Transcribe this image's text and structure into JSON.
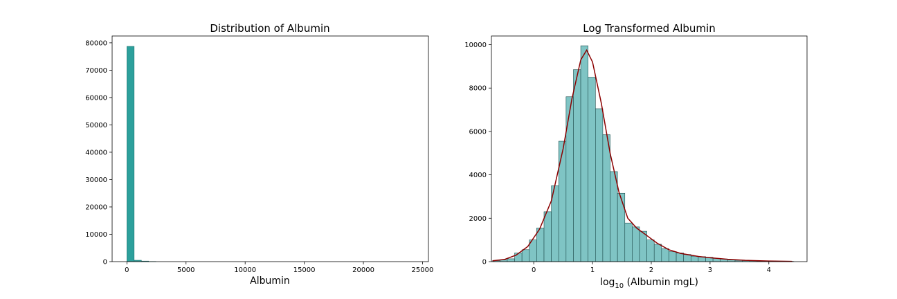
{
  "chart_data": [
    {
      "type": "bar",
      "title": "Distribution of Albumin",
      "xlabel": "Albumin",
      "ylabel": "",
      "xlim": [
        -1250,
        25500
      ],
      "ylim": [
        0,
        82500
      ],
      "xticks": [
        0,
        5000,
        10000,
        15000,
        20000,
        25000
      ],
      "yticks": [
        0,
        10000,
        20000,
        30000,
        40000,
        50000,
        60000,
        70000,
        80000
      ],
      "bin_width": 612.5,
      "bins": [
        {
          "x0": 0,
          "x1": 612.5,
          "count": 78700
        },
        {
          "x0": 612.5,
          "x1": 1225,
          "count": 500
        },
        {
          "x0": 1225,
          "x1": 1837.5,
          "count": 200
        },
        {
          "x0": 1837.5,
          "x1": 2450,
          "count": 60
        }
      ],
      "color": "#2ca09c",
      "edgecolor": "#1f6f6c",
      "grid": false
    },
    {
      "type": "bar",
      "title": "Log Transformed Albumin",
      "xlabel": "log10 (Albumin mgL)",
      "ylabel": "",
      "xlim": [
        -0.72,
        4.65
      ],
      "ylim": [
        0,
        10400
      ],
      "xticks": [
        0,
        1,
        2,
        3,
        4
      ],
      "yticks": [
        0,
        2000,
        4000,
        6000,
        8000,
        10000
      ],
      "bins": [
        {
          "x0": -0.7,
          "x1": -0.575,
          "count": 50
        },
        {
          "x0": -0.575,
          "x1": -0.45,
          "count": 80
        },
        {
          "x0": -0.45,
          "x1": -0.325,
          "count": 130
        },
        {
          "x0": -0.325,
          "x1": -0.2,
          "count": 400
        },
        {
          "x0": -0.2,
          "x1": -0.075,
          "count": 550
        },
        {
          "x0": -0.075,
          "x1": 0.05,
          "count": 1000
        },
        {
          "x0": 0.05,
          "x1": 0.175,
          "count": 1550
        },
        {
          "x0": 0.175,
          "x1": 0.3,
          "count": 2300
        },
        {
          "x0": 0.3,
          "x1": 0.425,
          "count": 3500
        },
        {
          "x0": 0.425,
          "x1": 0.55,
          "count": 5550
        },
        {
          "x0": 0.55,
          "x1": 0.675,
          "count": 7600
        },
        {
          "x0": 0.675,
          "x1": 0.8,
          "count": 8850
        },
        {
          "x0": 0.8,
          "x1": 0.925,
          "count": 9950
        },
        {
          "x0": 0.925,
          "x1": 1.05,
          "count": 8500
        },
        {
          "x0": 1.05,
          "x1": 1.175,
          "count": 7050
        },
        {
          "x0": 1.175,
          "x1": 1.3,
          "count": 5850
        },
        {
          "x0": 1.3,
          "x1": 1.425,
          "count": 4150
        },
        {
          "x0": 1.425,
          "x1": 1.55,
          "count": 3150
        },
        {
          "x0": 1.55,
          "x1": 1.675,
          "count": 1780
        },
        {
          "x0": 1.675,
          "x1": 1.8,
          "count": 1600
        },
        {
          "x0": 1.8,
          "x1": 1.925,
          "count": 1400
        },
        {
          "x0": 1.925,
          "x1": 2.05,
          "count": 1000
        },
        {
          "x0": 2.05,
          "x1": 2.175,
          "count": 800
        },
        {
          "x0": 2.175,
          "x1": 2.3,
          "count": 600
        },
        {
          "x0": 2.3,
          "x1": 2.425,
          "count": 460
        },
        {
          "x0": 2.425,
          "x1": 2.55,
          "count": 400
        },
        {
          "x0": 2.55,
          "x1": 2.675,
          "count": 330
        },
        {
          "x0": 2.675,
          "x1": 2.8,
          "count": 250
        },
        {
          "x0": 2.8,
          "x1": 2.925,
          "count": 230
        },
        {
          "x0": 2.925,
          "x1": 3.05,
          "count": 200
        },
        {
          "x0": 3.05,
          "x1": 3.175,
          "count": 150
        },
        {
          "x0": 3.175,
          "x1": 3.3,
          "count": 120
        },
        {
          "x0": 3.3,
          "x1": 3.425,
          "count": 80
        },
        {
          "x0": 3.425,
          "x1": 3.55,
          "count": 60
        },
        {
          "x0": 3.55,
          "x1": 3.675,
          "count": 50
        },
        {
          "x0": 3.675,
          "x1": 3.8,
          "count": 40
        },
        {
          "x0": 3.8,
          "x1": 3.925,
          "count": 30
        },
        {
          "x0": 3.925,
          "x1": 4.05,
          "count": 25
        },
        {
          "x0": 4.05,
          "x1": 4.175,
          "count": 20
        },
        {
          "x0": 4.175,
          "x1": 4.3,
          "count": 15
        },
        {
          "x0": 4.3,
          "x1": 4.425,
          "count": 10
        }
      ],
      "kde": {
        "x": [
          -0.7,
          -0.5,
          -0.3,
          -0.1,
          0.1,
          0.3,
          0.5,
          0.65,
          0.8,
          0.9,
          1.0,
          1.15,
          1.3,
          1.45,
          1.6,
          1.75,
          1.9,
          2.1,
          2.3,
          2.5,
          2.8,
          3.0,
          3.3,
          3.6,
          4.0,
          4.4
        ],
        "y": [
          40,
          100,
          300,
          700,
          1500,
          2800,
          5200,
          7500,
          9300,
          9750,
          9200,
          7300,
          5000,
          3200,
          2000,
          1550,
          1250,
          850,
          550,
          380,
          240,
          180,
          110,
          60,
          30,
          10
        ]
      },
      "color": "#7fc4c4",
      "edgecolor": "#1f4d4d",
      "kde_color": "#8b0000",
      "grid": false
    }
  ]
}
